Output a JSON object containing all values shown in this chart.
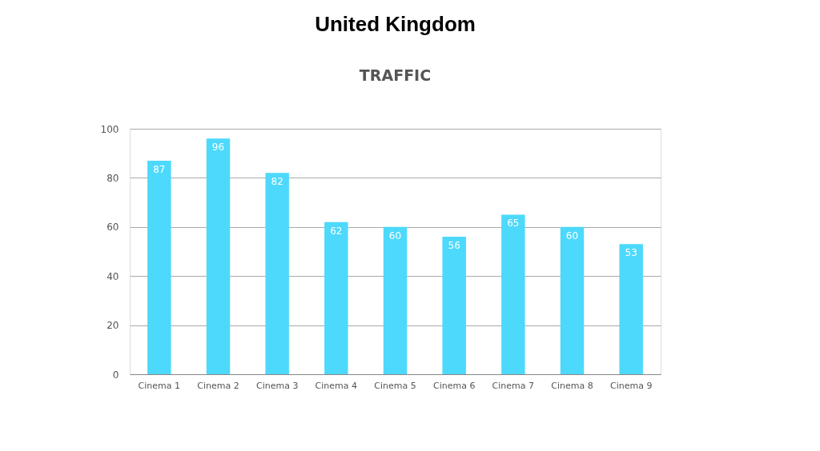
{
  "chart_data": {
    "type": "bar",
    "title": "United Kingdom",
    "subtitle": "TRAFFIC",
    "categories": [
      "Cinema 1",
      "Cinema 2",
      "Cinema 3",
      "Cinema 4",
      "Cinema 5",
      "Cinema 6",
      "Cinema 7",
      "Cinema 8",
      "Cinema 9"
    ],
    "values": [
      87,
      96,
      82,
      62,
      60,
      56,
      65,
      60,
      53
    ],
    "color": "#4dd9fb",
    "ylim": [
      0,
      100
    ],
    "yticks": [
      0,
      20,
      40,
      60,
      80,
      100
    ],
    "grid": "y",
    "data_labels": true
  }
}
